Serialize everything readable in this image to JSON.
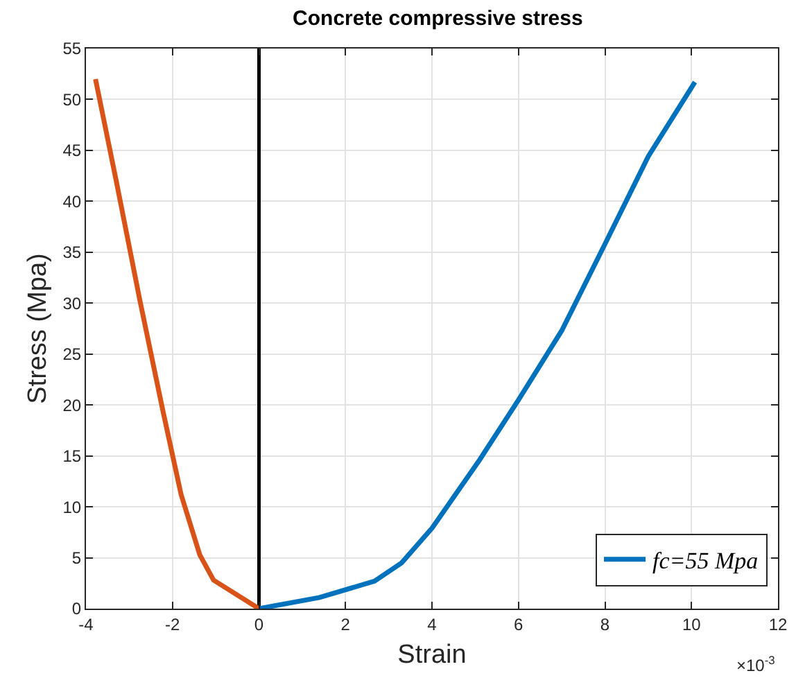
{
  "chart_data": {
    "type": "line",
    "title": "Concrete compressive stress",
    "xlabel": "Strain",
    "ylabel": "Stress (Mpa)",
    "annotations": [
      "×10$^{-3}$"
    ],
    "series": [
      {
        "color": "#d95319",
        "x": [
          -3.78,
          -3.3,
          -2.75,
          -2.22,
          -1.8,
          -1.37,
          -1.05,
          0
        ],
        "values": [
          52,
          42,
          30.2,
          19.4,
          11.2,
          5.3,
          2.8,
          0
        ]
      },
      {
        "name": "fc=55 Mpa",
        "color": "#0072bd",
        "x": [
          0,
          1.4,
          2.67,
          3.3,
          4,
          5.1,
          6,
          7,
          8,
          9,
          10.08
        ],
        "values": [
          0,
          1.1,
          2.7,
          4.5,
          7.9,
          14.6,
          20.5,
          27.3,
          35.8,
          44.4,
          51.7
        ]
      }
    ],
    "ref_lines": [
      {
        "axis": "x",
        "value": 0,
        "color": "#000000"
      }
    ],
    "xlim": [
      -4,
      12
    ],
    "xticks": [
      -4,
      -2,
      0,
      2,
      4,
      6,
      8,
      10,
      12
    ],
    "ylim": [
      0,
      55
    ],
    "yticks": [
      0,
      5,
      10,
      15,
      20,
      25,
      30,
      35,
      40,
      45,
      50,
      55
    ],
    "grid": true,
    "legend": "bottom right",
    "line_style": "solid",
    "marker": "none"
  }
}
